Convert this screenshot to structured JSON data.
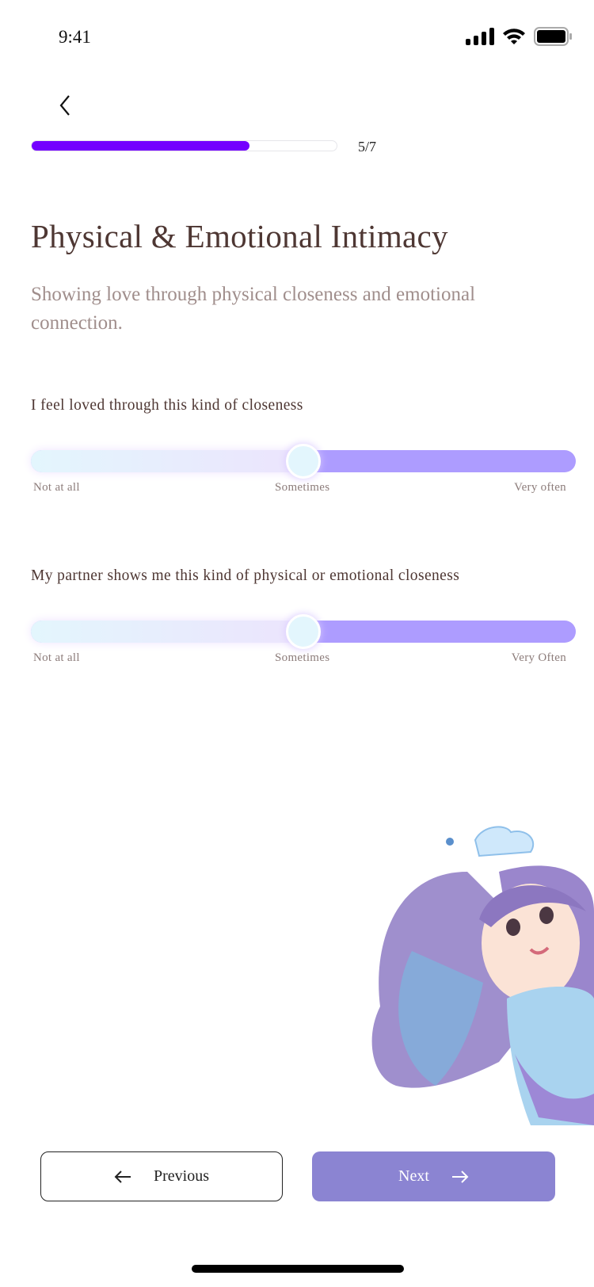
{
  "status_bar": {
    "time": "9:41"
  },
  "progress": {
    "current": 5,
    "total": 7,
    "label": "5/7",
    "fraction": 0.7142,
    "fill_color": "#7300ff"
  },
  "header": {
    "title": "Physical & Emotional Intimacy",
    "subtitle": "Showing love through physical closeness and emotional connection."
  },
  "questions": [
    {
      "prompt": "I feel loved through this kind of closeness",
      "value_fraction": 0.5,
      "labels": [
        "Not at all",
        "Sometimes",
        "Very often"
      ]
    },
    {
      "prompt": "My partner shows me this kind of physical or emotional closeness",
      "value_fraction": 0.5,
      "labels": [
        "Not at all",
        "Sometimes",
        "Very Often"
      ]
    }
  ],
  "buttons": {
    "previous": "Previous",
    "next": "Next"
  },
  "colors": {
    "accent": "#8b84d2",
    "track": "#ad9cff",
    "thumb": "#e3f6fd"
  }
}
